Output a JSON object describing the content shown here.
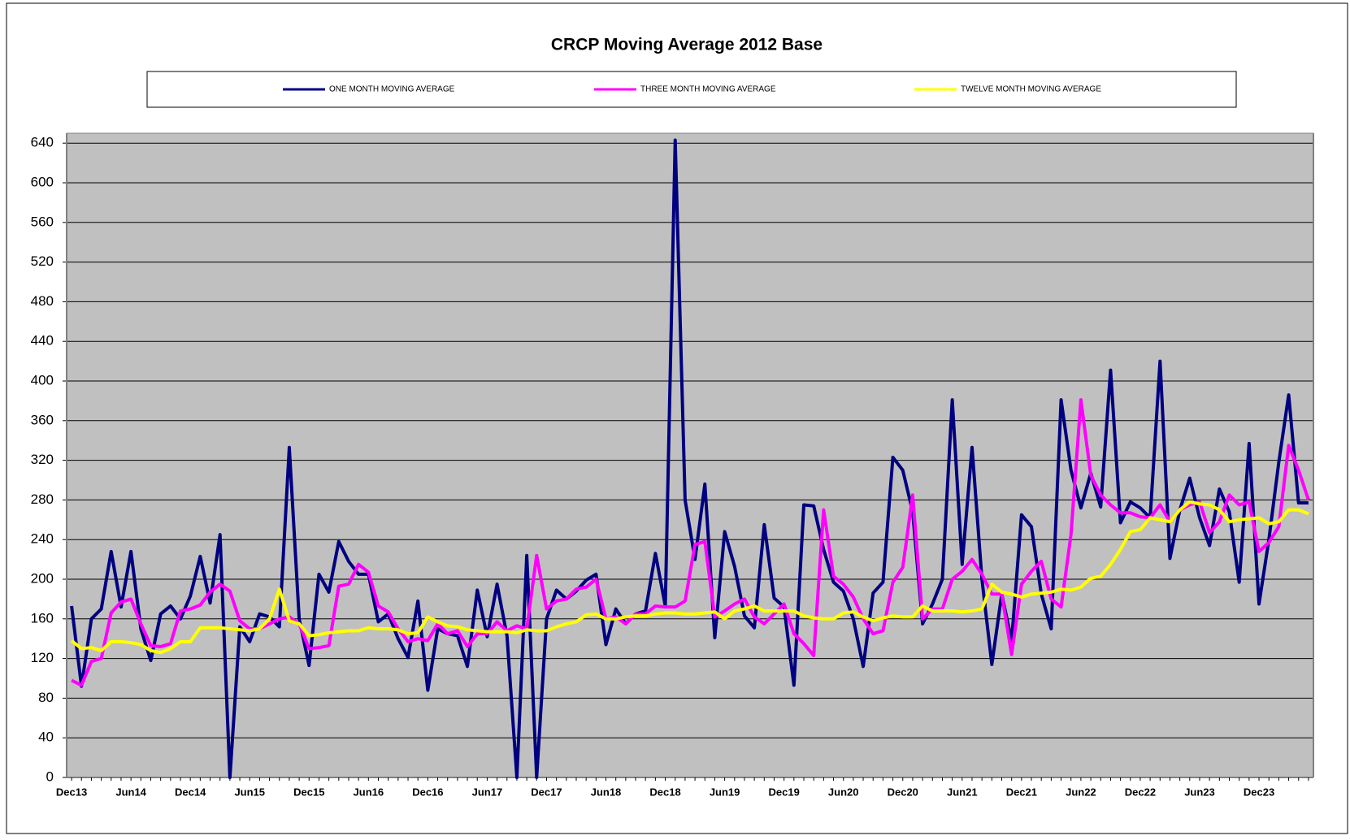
{
  "chart_data": {
    "type": "line",
    "title": "CRCP Moving Average 2012 Base",
    "categories": [
      "Dec13",
      null,
      null,
      null,
      null,
      null,
      "Jun14",
      null,
      null,
      null,
      null,
      null,
      "Dec14",
      null,
      null,
      null,
      null,
      null,
      "Jun15",
      null,
      null,
      null,
      null,
      null,
      "Dec15",
      null,
      null,
      null,
      null,
      null,
      "Jun16",
      null,
      null,
      null,
      null,
      null,
      "Dec16",
      null,
      null,
      null,
      null,
      null,
      "Jun17",
      null,
      null,
      null,
      null,
      null,
      "Dec17",
      null,
      null,
      null,
      null,
      null,
      "Jun18",
      null,
      null,
      null,
      null,
      null,
      "Dec18",
      null,
      null,
      null,
      null,
      null,
      "Jun19",
      null,
      null,
      null,
      null,
      null,
      "Dec19",
      null,
      null,
      null,
      null,
      null,
      "Jun20",
      null,
      null,
      null,
      null,
      null,
      "Dec20",
      null,
      null,
      null,
      null,
      null,
      "Jun21",
      null,
      null,
      null,
      null,
      null,
      "Dec21",
      null,
      null,
      null,
      null,
      null,
      "Jun22",
      null,
      null,
      null,
      null,
      null,
      "Dec22",
      null,
      null,
      null,
      null,
      null,
      "Jun23",
      null,
      null,
      null,
      null,
      null,
      "Dec23",
      null,
      null,
      null,
      null,
      null
    ],
    "series": [
      {
        "name": "ONE MONTH MOVING AVERAGE",
        "color": "#000080",
        "values": [
          173,
          92,
          160,
          170,
          228,
          172,
          228,
          150,
          118,
          165,
          173,
          160,
          183,
          223,
          176,
          245,
          0,
          152,
          137,
          165,
          162,
          152,
          333,
          160,
          113,
          205,
          187,
          238,
          218,
          205,
          205,
          157,
          165,
          140,
          121,
          178,
          88,
          150,
          145,
          143,
          112,
          189,
          142,
          195,
          143,
          0,
          224,
          0,
          160,
          189,
          180,
          188,
          199,
          205,
          134,
          170,
          155,
          165,
          168,
          226,
          173,
          643,
          280,
          220,
          296,
          141,
          248,
          213,
          163,
          151,
          255,
          181,
          172,
          93,
          275,
          274,
          230,
          197,
          188,
          160,
          112,
          186,
          197,
          323,
          310,
          268,
          155,
          175,
          200,
          381,
          215,
          333,
          200,
          114,
          185,
          138,
          265,
          253,
          185,
          150,
          381,
          310,
          272,
          307,
          273,
          411,
          257,
          278,
          272,
          262,
          420,
          221,
          270,
          302,
          262,
          234,
          291,
          268,
          197,
          337,
          175,
          240,
          318,
          386,
          277,
          277
        ]
      },
      {
        "name": "THREE MONTH MOVING AVERAGE",
        "color": "#ff00ff",
        "values": [
          98,
          93,
          117,
          120,
          166,
          177,
          180,
          155,
          133,
          132,
          135,
          168,
          170,
          174,
          187,
          195,
          188,
          158,
          150,
          150,
          155,
          160,
          162,
          155,
          130,
          131,
          133,
          193,
          195,
          215,
          207,
          173,
          167,
          150,
          137,
          140,
          138,
          155,
          145,
          148,
          132,
          145,
          145,
          157,
          148,
          153,
          150,
          224,
          170,
          178,
          180,
          190,
          192,
          200,
          160,
          162,
          155,
          165,
          165,
          173,
          172,
          172,
          178,
          235,
          238,
          162,
          168,
          175,
          180,
          162,
          155,
          165,
          175,
          145,
          135,
          123,
          270,
          203,
          195,
          182,
          160,
          145,
          148,
          197,
          212,
          285,
          160,
          170,
          170,
          200,
          208,
          220,
          205,
          185,
          185,
          124,
          195,
          208,
          218,
          180,
          172,
          245,
          381,
          305,
          285,
          275,
          267,
          267,
          263,
          262,
          275,
          258,
          270,
          275,
          278,
          247,
          258,
          285,
          275,
          278,
          228,
          237,
          253,
          335,
          310,
          280
        ]
      },
      {
        "name": "TWELVE MONTH MOVING AVERAGE",
        "color": "#ffff00",
        "values": [
          138,
          130,
          131,
          128,
          137,
          137,
          136,
          134,
          128,
          126,
          130,
          137,
          137,
          151,
          151,
          151,
          150,
          149,
          148,
          150,
          160,
          190,
          158,
          155,
          143,
          144,
          146,
          147,
          148,
          148,
          151,
          150,
          150,
          149,
          145,
          146,
          162,
          157,
          153,
          152,
          149,
          148,
          147,
          147,
          147,
          146,
          149,
          148,
          148,
          152,
          155,
          157,
          164,
          165,
          160,
          160,
          162,
          163,
          163,
          165,
          166,
          166,
          165,
          165,
          166,
          167,
          160,
          168,
          170,
          173,
          168,
          168,
          168,
          168,
          163,
          161,
          160,
          160,
          166,
          167,
          162,
          158,
          161,
          163,
          162,
          162,
          173,
          168,
          168,
          168,
          167,
          168,
          170,
          195,
          187,
          185,
          182,
          185,
          186,
          187,
          190,
          189,
          192,
          201,
          203,
          215,
          230,
          248,
          250,
          262,
          260,
          258,
          270,
          278,
          276,
          275,
          270,
          258,
          260,
          261,
          262,
          256,
          258,
          270,
          270,
          266
        ]
      }
    ],
    "ylim": [
      0,
      650
    ],
    "yticks": [
      0,
      40,
      80,
      120,
      160,
      200,
      240,
      280,
      320,
      360,
      400,
      440,
      480,
      520,
      560,
      600,
      640
    ],
    "grid": true
  }
}
